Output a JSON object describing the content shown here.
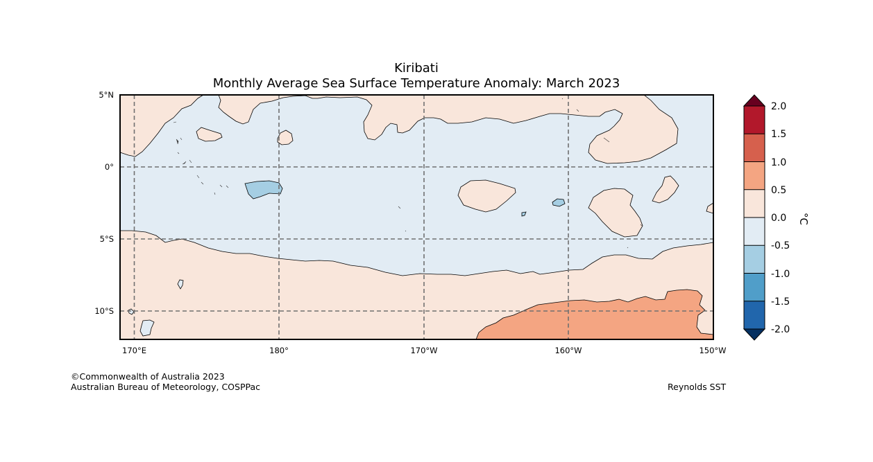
{
  "title": {
    "region": "Kiribati",
    "subtitle": "Monthly Average Sea Surface Temperature Anomaly: March 2023"
  },
  "map": {
    "lat_ticks": [
      "5°N",
      "0°",
      "5°S",
      "10°S"
    ],
    "lon_ticks": [
      "170°E",
      "180°",
      "170°W",
      "160°W",
      "150°W"
    ],
    "lat_range_deg": [
      -12,
      5
    ],
    "lon_range_deg_east": [
      169,
      210
    ],
    "contour_interval_c": 0.5,
    "features": [
      "Western Pacific north of 0° and most of equatorial band at -0.5 to 0.0 °C",
      "South of about 5°S at 0.0 to 0.5 °C",
      "Region near 160°W to 150°W south of 9°S at 0.5 to 1.0 °C",
      "Small pocket near 178°E 2°S at -1.0 to -0.5 °C"
    ]
  },
  "colorbar": {
    "label": "°C",
    "tick_labels": [
      "2.0",
      "1.5",
      "1.0",
      "0.5",
      "0.0",
      "-0.5",
      "-1.0",
      "-1.5",
      "-2.0"
    ],
    "levels": [
      2.0,
      1.5,
      1.0,
      0.5,
      0.0,
      -0.5,
      -1.0,
      -1.5,
      -2.0
    ],
    "colors": {
      "above_2_0": "#67001f",
      "1_5_to_2_0": "#b2182b",
      "1_0_to_1_5": "#d6604d",
      "0_5_to_1_0": "#f4a582",
      "0_0_to_0_5": "#f9e6db",
      "neg0_5_to_0_0": "#e2ecf4",
      "neg1_0_to_neg0_5": "#a5cee3",
      "neg1_5_to_neg1_0": "#509ec9",
      "neg2_0_to_neg1_5": "#2166ac",
      "below_neg2_0": "#053061"
    }
  },
  "footer": {
    "copyright": "©Commonwealth of Australia 2023",
    "agency": "Australian Bureau of Meteorology, COSPPac",
    "source": "Reynolds SST"
  }
}
